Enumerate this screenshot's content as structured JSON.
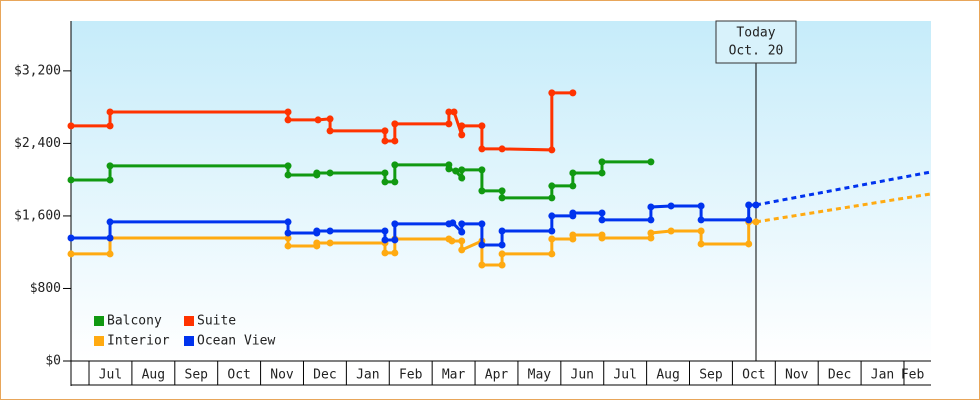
{
  "chart_data": {
    "type": "line",
    "step_markers": true,
    "ylim": [
      0,
      3750
    ],
    "yticks": [
      {
        "value": 0,
        "label": "$0"
      },
      {
        "value": 800,
        "label": "$800"
      },
      {
        "value": 1600,
        "label": "$1,600"
      },
      {
        "value": 2400,
        "label": "$2,400"
      },
      {
        "value": 3200,
        "label": "$3,200"
      }
    ],
    "xlim": [
      -0.42,
      19.63
    ],
    "xticks": [
      {
        "value": 0.5,
        "label": "Jul"
      },
      {
        "value": 1.5,
        "label": "Aug"
      },
      {
        "value": 2.5,
        "label": "Sep"
      },
      {
        "value": 3.5,
        "label": "Oct"
      },
      {
        "value": 4.5,
        "label": "Nov"
      },
      {
        "value": 5.5,
        "label": "Dec"
      },
      {
        "value": 6.5,
        "label": "Jan"
      },
      {
        "value": 7.5,
        "label": "Feb"
      },
      {
        "value": 8.5,
        "label": "Mar"
      },
      {
        "value": 9.5,
        "label": "Apr"
      },
      {
        "value": 10.5,
        "label": "May"
      },
      {
        "value": 11.5,
        "label": "Jun"
      },
      {
        "value": 12.5,
        "label": "Jul"
      },
      {
        "value": 13.5,
        "label": "Aug"
      },
      {
        "value": 14.5,
        "label": "Sep"
      },
      {
        "value": 15.5,
        "label": "Oct"
      },
      {
        "value": 16.5,
        "label": "Nov"
      },
      {
        "value": 17.5,
        "label": "Dec"
      },
      {
        "value": 18.5,
        "label": "Jan"
      },
      {
        "value": 19.2,
        "label": "Feb"
      }
    ],
    "annotation": {
      "x": 15.55,
      "lines": [
        "Today",
        "Oct. 20"
      ]
    },
    "series": [
      {
        "name": "Suite",
        "color": "#ff3300",
        "x": [
          -0.42,
          0.49,
          0.49,
          4.64,
          4.64,
          5.34,
          5.62,
          5.62,
          6.9,
          6.9,
          7.13,
          7.13,
          8.39,
          8.39,
          8.51,
          8.69,
          8.69,
          9.16,
          9.16,
          9.63,
          10.79,
          10.79,
          11.28
        ],
        "values": [
          2593,
          2593,
          2747,
          2747,
          2659,
          2659,
          2670,
          2538,
          2538,
          2427,
          2427,
          2615,
          2615,
          2747,
          2747,
          2494,
          2593,
          2593,
          2339,
          2339,
          2328,
          2957,
          2957
        ]
      },
      {
        "name": "Balcony",
        "color": "#119911",
        "x": [
          -0.42,
          0.49,
          0.49,
          4.64,
          4.64,
          5.31,
          5.31,
          5.62,
          6.9,
          6.9,
          7.13,
          7.13,
          8.39,
          8.39,
          8.55,
          8.69,
          8.69,
          9.16,
          9.16,
          9.63,
          9.63,
          10.79,
          10.79,
          11.28,
          11.28,
          11.96,
          11.96,
          13.1
        ],
        "values": [
          1997,
          1997,
          2152,
          2152,
          2052,
          2052,
          2074,
          2074,
          2074,
          1975,
          1975,
          2163,
          2163,
          2119,
          2096,
          2019,
          2108,
          2108,
          1876,
          1876,
          1799,
          1799,
          1931,
          1931,
          2074,
          2074,
          2196,
          2196
        ]
      },
      {
        "name": "Interior",
        "color": "#ffaa11",
        "x": [
          -0.42,
          0.49,
          0.49,
          4.64,
          4.64,
          5.31,
          5.31,
          5.62,
          6.9,
          6.9,
          7.13,
          7.13,
          8.39,
          8.46,
          8.69,
          8.69,
          9.16,
          9.16,
          9.63,
          9.63,
          10.79,
          10.79,
          11.28,
          11.28,
          11.96,
          11.96,
          13.1,
          13.1,
          13.57,
          14.27,
          14.27,
          15.38,
          15.38,
          15.55
        ],
        "values": [
          1181,
          1181,
          1357,
          1357,
          1269,
          1269,
          1302,
          1302,
          1302,
          1192,
          1192,
          1346,
          1346,
          1324,
          1324,
          1225,
          1324,
          1059,
          1059,
          1181,
          1181,
          1346,
          1346,
          1390,
          1390,
          1357,
          1357,
          1412,
          1434,
          1434,
          1291,
          1291,
          1534,
          1534
        ],
        "projection": {
          "x": [
            15.55,
            19.63
          ],
          "values": [
            1534,
            1843
          ]
        }
      },
      {
        "name": "Ocean View",
        "color": "#0033ee",
        "x": [
          -0.42,
          0.49,
          0.49,
          4.64,
          4.64,
          5.31,
          5.31,
          5.62,
          6.9,
          6.9,
          7.13,
          7.13,
          8.39,
          8.48,
          8.69,
          8.69,
          9.16,
          9.16,
          9.63,
          9.63,
          10.79,
          10.79,
          11.28,
          11.28,
          11.96,
          11.96,
          13.1,
          13.1,
          13.57,
          14.27,
          14.27,
          15.38,
          15.38,
          15.55
        ],
        "values": [
          1357,
          1357,
          1534,
          1534,
          1412,
          1412,
          1434,
          1434,
          1434,
          1335,
          1335,
          1512,
          1512,
          1523,
          1423,
          1512,
          1512,
          1280,
          1280,
          1434,
          1434,
          1600,
          1600,
          1633,
          1633,
          1556,
          1556,
          1699,
          1710,
          1710,
          1556,
          1556,
          1721,
          1721
        ],
        "projection": {
          "x": [
            15.55,
            19.63
          ],
          "values": [
            1721,
            2085
          ]
        }
      }
    ]
  }
}
